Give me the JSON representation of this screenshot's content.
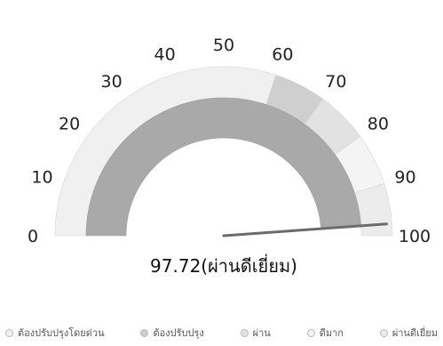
{
  "chart_data": {
    "type": "gauge",
    "min": 0,
    "max": 100,
    "value": 97.72,
    "value_label": "97.72(ผ่านดีเยี่ยม)",
    "ticks": [
      "0",
      "10",
      "20",
      "30",
      "40",
      "50",
      "60",
      "70",
      "80",
      "90",
      "100"
    ],
    "bands": [
      {
        "from": 0,
        "to": 60,
        "color": "#f0f0f0",
        "label": "ต้องปรับปรุงโดยด่วน"
      },
      {
        "from": 60,
        "to": 70,
        "color": "#cfcfcf",
        "label": "ต้องปรับปรุง"
      },
      {
        "from": 70,
        "to": 80,
        "color": "#e2e2e2",
        "label": "ผ่าน"
      },
      {
        "from": 80,
        "to": 90,
        "color": "#f4f4f4",
        "label": "ดีมาก"
      },
      {
        "from": 90,
        "to": 100,
        "color": "#ececec",
        "label": "ผ่านดีเยี่ยม"
      }
    ],
    "progress_color": "#a9a9a9",
    "needle_color": "#6b6b6b",
    "legend_placement": "bottom"
  }
}
